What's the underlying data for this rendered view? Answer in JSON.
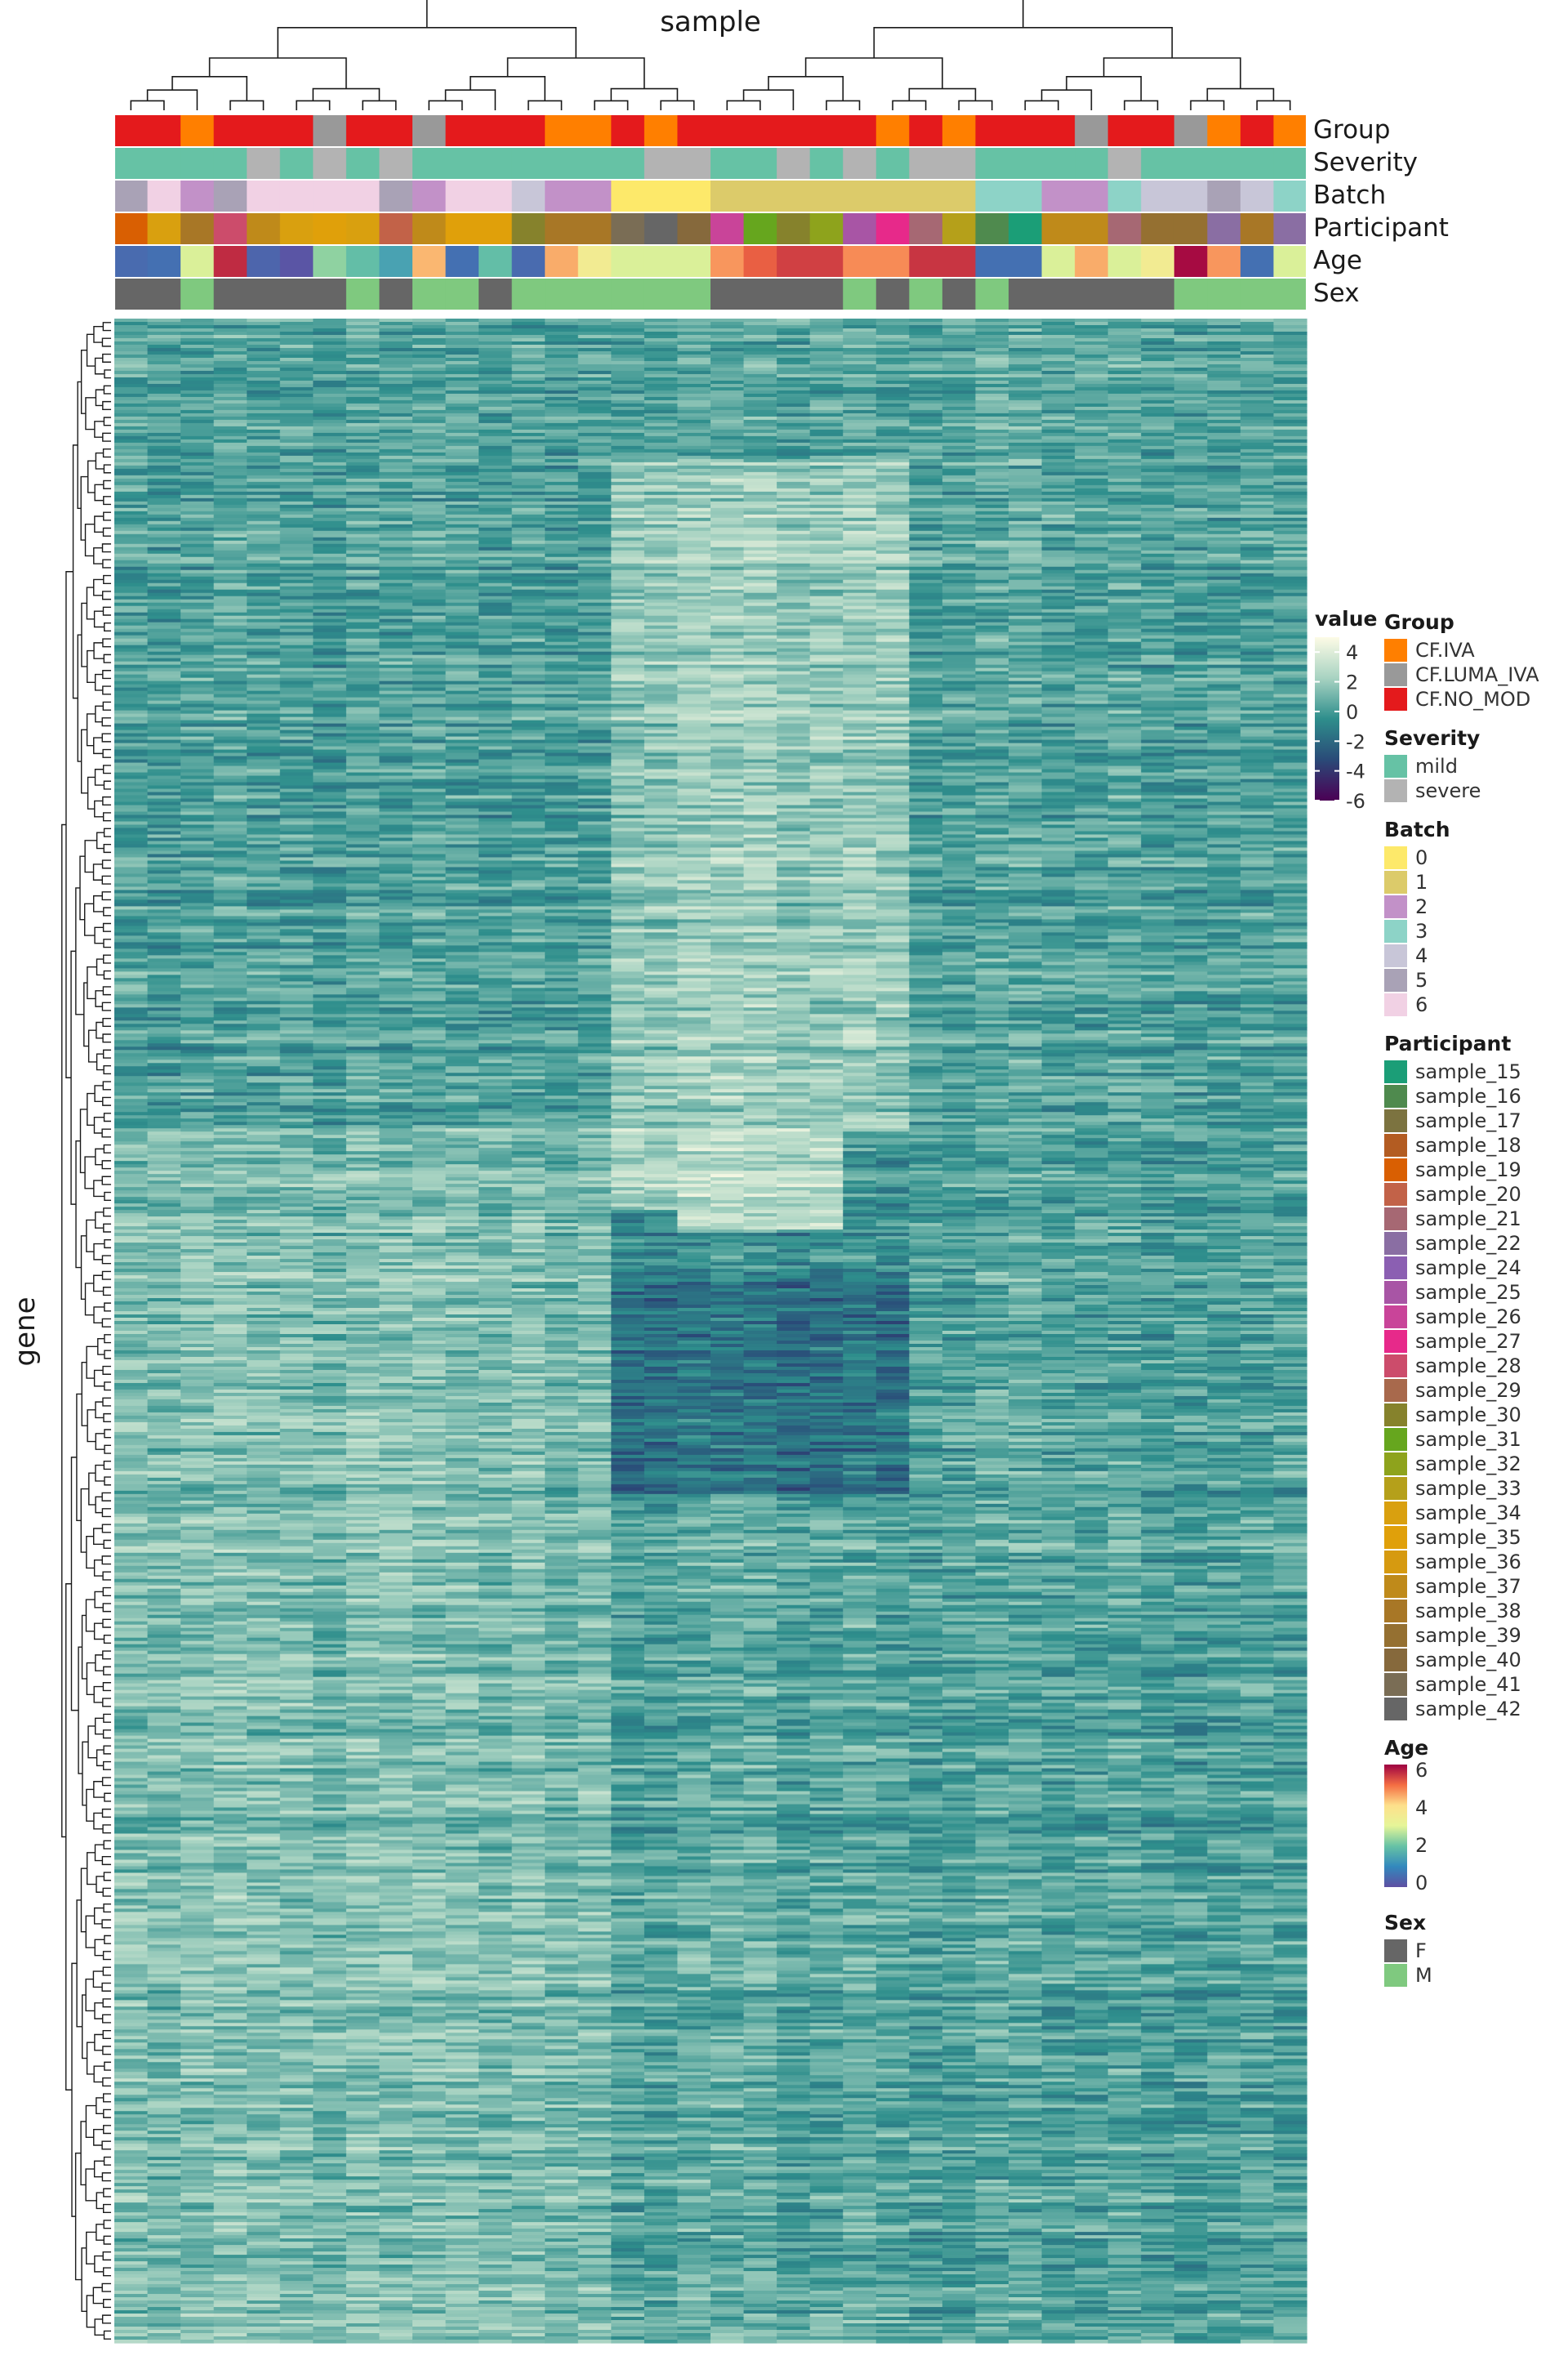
{
  "chart_data": {
    "type": "heatmap",
    "title": "",
    "xlabel": "sample",
    "ylabel": "gene",
    "value_scale": {
      "name": "value",
      "ticks": [
        4,
        2,
        0,
        -2,
        -4,
        -6
      ],
      "range": [
        -6,
        5
      ],
      "colors": [
        "#4b0055",
        "#2a4a78",
        "#2e8e8c",
        "#a8d3c2",
        "#fdfbe6"
      ]
    },
    "n_columns": 36,
    "annotation_tracks": [
      {
        "name": "Group",
        "values": [
          "CF.NO_MOD",
          "CF.NO_MOD",
          "CF.IVA",
          "CF.NO_MOD",
          "CF.NO_MOD",
          "CF.NO_MOD",
          "CF.LUMA_IVA",
          "CF.NO_MOD",
          "CF.NO_MOD",
          "CF.LUMA_IVA",
          "CF.NO_MOD",
          "CF.NO_MOD",
          "CF.NO_MOD",
          "CF.IVA",
          "CF.IVA",
          "CF.NO_MOD",
          "CF.IVA",
          "CF.NO_MOD",
          "CF.NO_MOD",
          "CF.NO_MOD",
          "CF.NO_MOD",
          "CF.NO_MOD",
          "CF.NO_MOD",
          "CF.IVA",
          "CF.NO_MOD",
          "CF.IVA",
          "CF.NO_MOD",
          "CF.NO_MOD",
          "CF.NO_MOD",
          "CF.LUMA_IVA",
          "CF.NO_MOD",
          "CF.NO_MOD",
          "CF.LUMA_IVA",
          "CF.IVA",
          "CF.NO_MOD",
          "CF.IVA"
        ]
      },
      {
        "name": "Severity",
        "values": [
          "mild",
          "mild",
          "mild",
          "mild",
          "severe",
          "mild",
          "severe",
          "mild",
          "severe",
          "mild",
          "mild",
          "mild",
          "mild",
          "mild",
          "mild",
          "mild",
          "severe",
          "severe",
          "mild",
          "mild",
          "severe",
          "mild",
          "severe",
          "mild",
          "severe",
          "severe",
          "mild",
          "mild",
          "mild",
          "mild",
          "severe",
          "mild",
          "mild",
          "mild",
          "mild",
          "mild"
        ]
      },
      {
        "name": "Batch",
        "values": [
          "5",
          "6",
          "2",
          "5",
          "6",
          "6",
          "6",
          "6",
          "5",
          "2",
          "6",
          "6",
          "4",
          "2",
          "2",
          "0",
          "0",
          "0",
          "1",
          "1",
          "1",
          "1",
          "1",
          "1",
          "1",
          "1",
          "3",
          "3",
          "2",
          "2",
          "3",
          "4",
          "4",
          "5",
          "4",
          "3"
        ]
      },
      {
        "name": "Participant",
        "values": [
          "sample_19",
          "sample_34",
          "sample_38",
          "sample_28",
          "sample_37",
          "sample_34",
          "sample_35",
          "sample_34",
          "sample_20",
          "sample_37",
          "sample_35",
          "sample_35",
          "sample_30",
          "sample_38",
          "sample_38",
          "sample_41",
          "sample_42",
          "sample_40",
          "sample_26",
          "sample_31",
          "sample_30",
          "sample_32",
          "sample_25",
          "sample_27",
          "sample_21",
          "sample_33",
          "sample_16",
          "sample_15",
          "sample_37",
          "sample_37",
          "sample_21",
          "sample_39",
          "sample_39",
          "sample_22",
          "sample_38",
          "sample_22"
        ]
      },
      {
        "name": "Age",
        "values": [
          0.5,
          0.6,
          3.0,
          5.8,
          0.4,
          0.1,
          2.4,
          2.0,
          1.5,
          4.5,
          0.6,
          2.0,
          0.5,
          4.6,
          3.6,
          3.0,
          3.0,
          3.0,
          4.8,
          5.3,
          5.6,
          5.6,
          4.9,
          4.9,
          5.7,
          5.7,
          0.6,
          0.6,
          3.0,
          4.6,
          3.0,
          3.6,
          6.1,
          4.8,
          0.6,
          3.0
        ]
      },
      {
        "name": "Sex",
        "values": [
          "F",
          "F",
          "M",
          "F",
          "F",
          "F",
          "F",
          "M",
          "F",
          "M",
          "M",
          "F",
          "M",
          "M",
          "M",
          "M",
          "M",
          "M",
          "F",
          "F",
          "F",
          "F",
          "M",
          "F",
          "M",
          "F",
          "M",
          "F",
          "F",
          "F",
          "F",
          "F",
          "M",
          "M",
          "M",
          "M"
        ]
      }
    ],
    "legends": [
      {
        "title": "Group",
        "entries": [
          "CF.IVA",
          "CF.LUMA_IVA",
          "CF.NO_MOD"
        ],
        "colors": [
          "#ff7f00",
          "#999999",
          "#e41a1c"
        ]
      },
      {
        "title": "Severity",
        "entries": [
          "mild",
          "severe"
        ],
        "colors": [
          "#66c2a5",
          "#b3b3b3"
        ]
      },
      {
        "title": "Batch",
        "entries": [
          "0",
          "1",
          "2",
          "3",
          "4",
          "5",
          "6"
        ],
        "colors": [
          "#fde96a",
          "#dccb6a",
          "#c291c8",
          "#8dd3c7",
          "#c8c6d8",
          "#a9a2b6",
          "#f1d1e4"
        ]
      },
      {
        "title": "Participant",
        "entries": [
          "sample_15",
          "sample_16",
          "sample_17",
          "sample_18",
          "sample_19",
          "sample_20",
          "sample_21",
          "sample_22",
          "sample_24",
          "sample_25",
          "sample_26",
          "sample_27",
          "sample_28",
          "sample_29",
          "sample_30",
          "sample_31",
          "sample_32",
          "sample_33",
          "sample_34",
          "sample_35",
          "sample_36",
          "sample_37",
          "sample_38",
          "sample_39",
          "sample_40",
          "sample_41",
          "sample_42"
        ],
        "colors": [
          "#1b9e77",
          "#4f8a4e",
          "#7c7340",
          "#b35c22",
          "#d95f02",
          "#c26248",
          "#a66873",
          "#8a6ea3",
          "#8b5fb2",
          "#a855a5",
          "#c94499",
          "#e7298a",
          "#cc4c6b",
          "#a8694c",
          "#86822c",
          "#66a61e",
          "#8ea31c",
          "#b5a01a",
          "#d9a00f",
          "#e0a00a",
          "#d69a10",
          "#bf8a1a",
          "#a87726",
          "#957031",
          "#86693c",
          "#7a6d55",
          "#666666"
        ]
      },
      {
        "title": "Age",
        "entries": [
          "6",
          "4",
          "2",
          "0"
        ],
        "colors": [
          "#9e0142",
          "#f46d43",
          "#fee08b",
          "#e6f598",
          "#66c2a5",
          "#3288bd",
          "#5e4fa2"
        ]
      },
      {
        "title": "Sex",
        "entries": [
          "F",
          "M"
        ],
        "colors": [
          "#666666",
          "#7fc97f"
        ]
      }
    ],
    "value_blocks": [
      {
        "rows": [
          0.07,
          0.4
        ],
        "cols": [
          15,
          24
        ],
        "mean": 1.9
      },
      {
        "rows": [
          0.3,
          0.45
        ],
        "cols": [
          17,
          22
        ],
        "mean": 2.8
      },
      {
        "rows": [
          0.34,
          0.44
        ],
        "cols": [
          15,
          17
        ],
        "mean": 2.6
      },
      {
        "rows": [
          0.41,
          0.47
        ],
        "cols": [
          15,
          24
        ],
        "mean": -0.4
      },
      {
        "rows": [
          0.47,
          0.58
        ],
        "cols": [
          15,
          24
        ],
        "mean": -1.7
      },
      {
        "rows": [
          0.49,
          0.58
        ],
        "cols": [
          15,
          16
        ],
        "mean": -2.8
      },
      {
        "rows": [
          0.59,
          1.0
        ],
        "cols": [
          15,
          24
        ],
        "mean": 0.5
      },
      {
        "rows": [
          0.62,
          0.8
        ],
        "cols": [
          15,
          24
        ],
        "mean": -1.5
      },
      {
        "rows": [
          0.4,
          1.0
        ],
        "cols": [
          0,
          15
        ],
        "mean": 1.3
      },
      {
        "rows": [
          0.0,
          0.4
        ],
        "cols": [
          0,
          15
        ],
        "mean": 0.1
      }
    ]
  }
}
